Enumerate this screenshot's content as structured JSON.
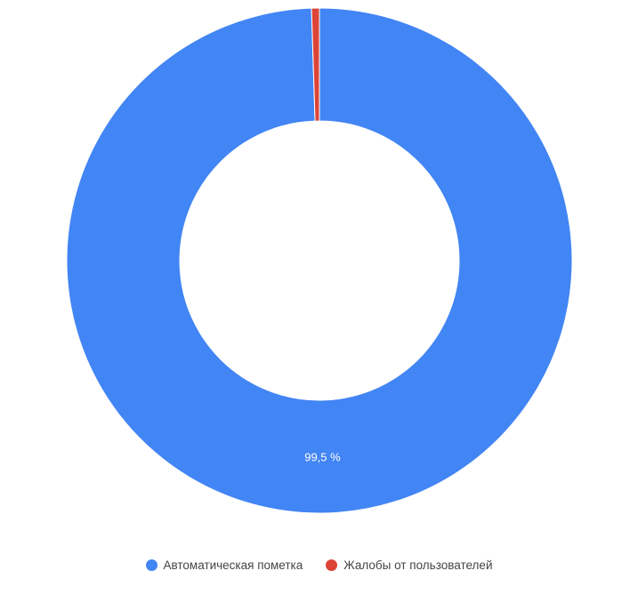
{
  "chart_data": {
    "type": "pie",
    "donut": true,
    "categories": [
      "Автоматическая пометка",
      "Жалобы от пользователей"
    ],
    "values": [
      99.5,
      0.5
    ],
    "colors": [
      "#4285f4",
      "#db4437"
    ],
    "data_labels": [
      "99,5 %",
      ""
    ],
    "legend_position": "bottom"
  }
}
